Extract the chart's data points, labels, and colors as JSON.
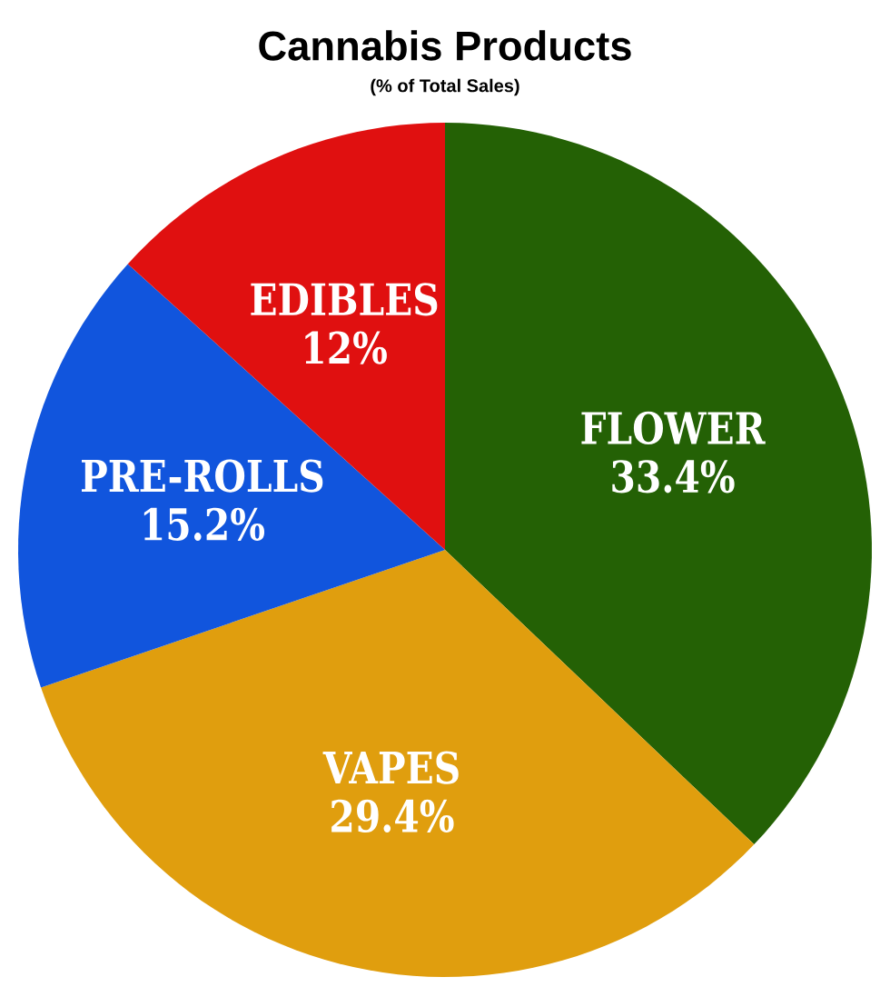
{
  "chart_data": {
    "type": "pie",
    "title": "Cannabis Products",
    "subtitle": "(% of Total Sales)",
    "categories": [
      "FLOWER",
      "VAPES",
      "PRE-ROLLS",
      "EDIBLES"
    ],
    "values": [
      33.4,
      29.4,
      15.2,
      12
    ],
    "value_labels": [
      "33.4%",
      "29.4%",
      "15.2%",
      "12%"
    ],
    "colors": [
      "#246105",
      "#e09e0e",
      "#1155dd",
      "#e01010"
    ]
  }
}
